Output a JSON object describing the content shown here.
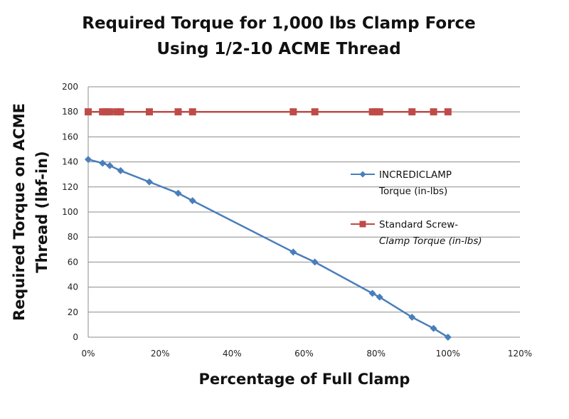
{
  "chart_data": {
    "type": "line",
    "title": [
      "Required Torque for 1,000 lbs Clamp Force",
      "Using 1/2-10 ACME Thread"
    ],
    "xlabel": "Percentage of Full Clamp",
    "ylabel": [
      "Required Torque on ACME",
      "Thread (lbf-in)"
    ],
    "xlim": [
      0,
      120
    ],
    "ylim": [
      0,
      200
    ],
    "x_ticks": [
      "0%",
      "20%",
      "40%",
      "60%",
      "80%",
      "100%",
      "120%"
    ],
    "y_ticks": [
      "0",
      "20",
      "40",
      "60",
      "80",
      "100",
      "120",
      "140",
      "160",
      "180",
      "200"
    ],
    "grid": true,
    "legend_position": "right",
    "series": [
      {
        "name": [
          "INCREDICLAMP",
          "Torque (in-lbs)"
        ],
        "color": "#4a7ebb",
        "marker": "diamond",
        "x": [
          0,
          4,
          6,
          9,
          17,
          25,
          29,
          57,
          63,
          79,
          81,
          90,
          96,
          100
        ],
        "y": [
          142,
          139,
          137,
          133,
          124,
          115,
          109,
          68,
          60,
          35,
          32,
          16,
          7,
          0
        ]
      },
      {
        "name": [
          "Standard Screw-",
          "Clamp Torque (in-lbs)"
        ],
        "color": "#be4b48",
        "marker": "square",
        "x": [
          0,
          4,
          5,
          6,
          8,
          9,
          17,
          25,
          29,
          57,
          63,
          79,
          80,
          81,
          90,
          96,
          100
        ],
        "y": [
          180,
          180,
          180,
          180,
          180,
          180,
          180,
          180,
          180,
          180,
          180,
          180,
          180,
          180,
          180,
          180,
          180
        ]
      }
    ]
  }
}
